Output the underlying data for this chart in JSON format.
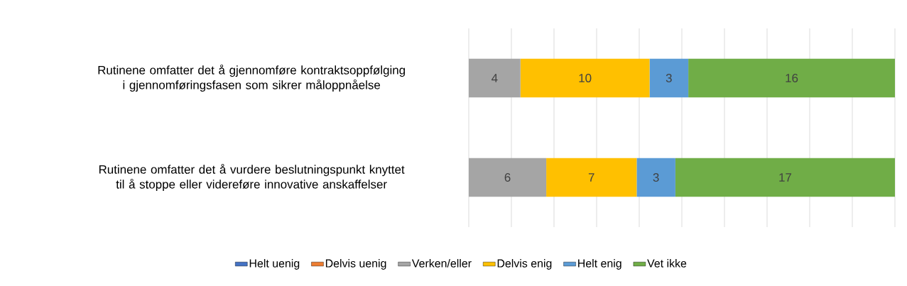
{
  "chart_data": {
    "type": "bar",
    "orientation": "horizontal",
    "stacked": true,
    "data_labels": true,
    "grid": "x",
    "legend": "bottom",
    "tick_labels": "y",
    "categories": [
      "Rutinene omfatter det å gjennomføre kontraktsoppfølging i gjennomføringsfasen som sikrer måloppnåelse",
      "Rutinene omfatter det å vurdere beslutningspunkt knyttet til å stoppe eller videreføre innovative anskaffelser"
    ],
    "series": [
      {
        "name": "Helt uenig",
        "color": "#4472c4",
        "values": [
          null,
          null
        ]
      },
      {
        "name": "Delvis uenig",
        "color": "#ed7d31",
        "values": [
          null,
          null
        ]
      },
      {
        "name": "Verken/eller",
        "color": "#a5a5a5",
        "values": [
          4,
          6
        ]
      },
      {
        "name": "Delvis enig",
        "color": "#ffc000",
        "values": [
          10,
          7
        ]
      },
      {
        "name": "Helt enig",
        "color": "#5b9bd5",
        "values": [
          3,
          3
        ]
      },
      {
        "name": "Vet ikke",
        "color": "#70ad47",
        "values": [
          16,
          17
        ]
      }
    ]
  }
}
